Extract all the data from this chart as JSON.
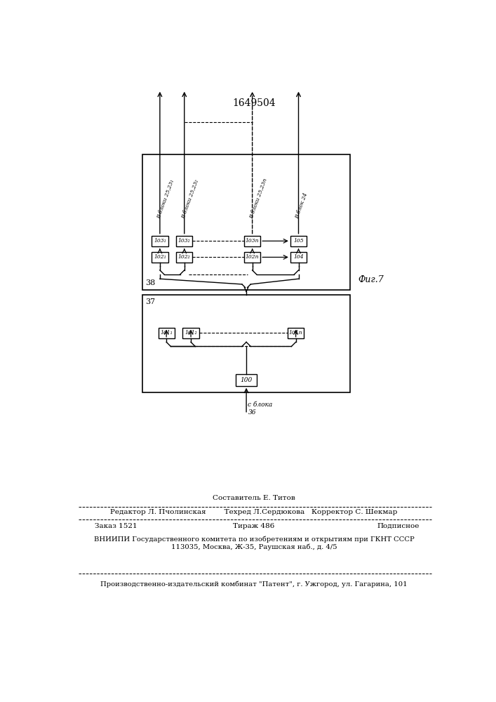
{
  "title": "1649504",
  "fig_label": "Фиг.7",
  "box38_label": "38",
  "box37_label": "37",
  "composer": "Составитель Е. Титов",
  "editor_line": "Редактор Л. Пчолинская        Техред Л.Сердюкова   Корректор С. Шекмар",
  "zakaz": "Заказ 1521",
  "tirazh": "Тираж 486",
  "podpisnoe": "Подписное",
  "vnipi_line1": "ВНИИПИ Государственного комитета по изобретениям и открытиям при ГКНТ СССР",
  "vnipi_line2": "113035, Москва, Ж-35, Раушская наб., д. 4/5",
  "patent_line": "Производственно-издательский комбинат \"Патент\", г. Ужгород, ул. Гагарина, 101",
  "label_36": "с блока\n36",
  "arrow_labels": [
    "В блоки 25,23₁",
    "В блоки 25,23₂",
    "В блоки 25,23n",
    "В блок 24"
  ]
}
